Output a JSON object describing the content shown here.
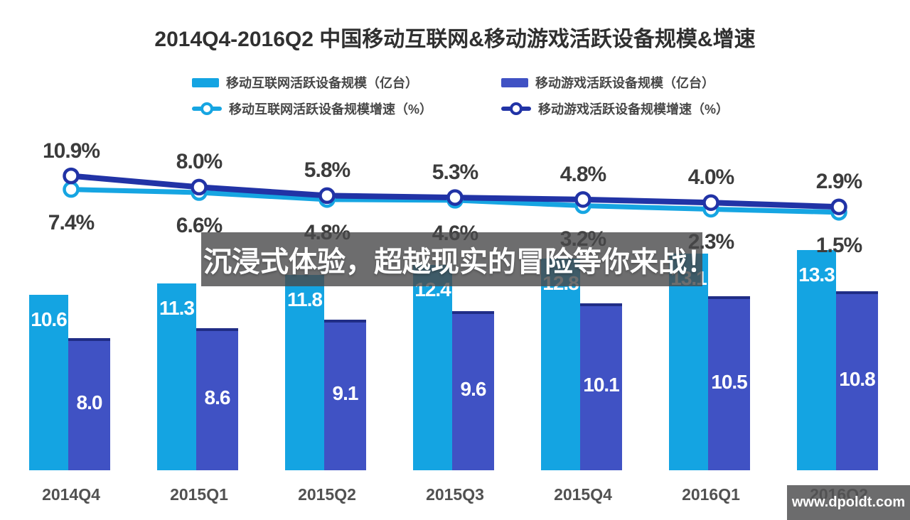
{
  "title": "2014Q4-2016Q2 中国移动互联网&移动游戏活跃设备规模&增速",
  "legend": {
    "bar_internet": "移动互联网活跃设备规模（亿台）",
    "bar_game": "移动游戏活跃设备规模（亿台）",
    "line_internet": "移动互联网活跃设备规模增速（%）",
    "line_game": "移动游戏活跃设备规模增速（%）"
  },
  "colors": {
    "internet_bar": "#14a4e2",
    "game_bar": "#4052c4",
    "game_bar_cap": "#202d86",
    "internet_line": "#16a5e2",
    "game_line": "#2133a6",
    "percent_label": "#3c3c3c",
    "banner_bg": "rgba(72,72,74,0.8)",
    "watermark_bg": "rgba(82,82,84,0.85)"
  },
  "overlay": {
    "banner": "沉浸式体验，超越现实的冒险等你来战！",
    "watermark": "www.dpoldt.com"
  },
  "chart_data": {
    "type": "bar+line combo",
    "categories": [
      "2014Q4",
      "2015Q1",
      "2015Q2",
      "2015Q3",
      "2015Q4",
      "2016Q1",
      "2016Q2"
    ],
    "series": [
      {
        "name": "移动互联网活跃设备规模（亿台）",
        "type": "bar",
        "values": [
          10.6,
          11.3,
          11.8,
          12.4,
          12.8,
          13.1,
          13.3
        ],
        "labels": [
          "10.6",
          "11.3",
          "11.8",
          "12.4",
          "12.8",
          "13.1",
          "13.3"
        ]
      },
      {
        "name": "移动游戏活跃设备规模（亿台）",
        "type": "bar",
        "values": [
          8.0,
          8.6,
          9.1,
          9.6,
          10.1,
          10.5,
          10.8
        ],
        "labels": [
          "8.0",
          "8.6",
          "9.1",
          "9.6",
          "10.1",
          "10.5",
          "10.8"
        ]
      },
      {
        "name": "移动互联网活跃设备规模增速（%）",
        "type": "line",
        "values": [
          7.4,
          6.6,
          4.8,
          4.6,
          3.2,
          2.3,
          1.5
        ],
        "labels": [
          "7.4%",
          "6.6%",
          "4.8%",
          "4.6%",
          "3.2%",
          "2.3%",
          "1.5%"
        ]
      },
      {
        "name": "移动游戏活跃设备规模增速（%）",
        "type": "line",
        "values": [
          10.9,
          8.0,
          5.8,
          5.3,
          4.8,
          4.0,
          2.9
        ],
        "labels": [
          "10.9%",
          "8.0%",
          "5.8%",
          "5.3%",
          "4.8%",
          "4.0%",
          "2.9%"
        ]
      }
    ],
    "legend_position": "top",
    "grid": false,
    "y_axis_visible": false
  }
}
